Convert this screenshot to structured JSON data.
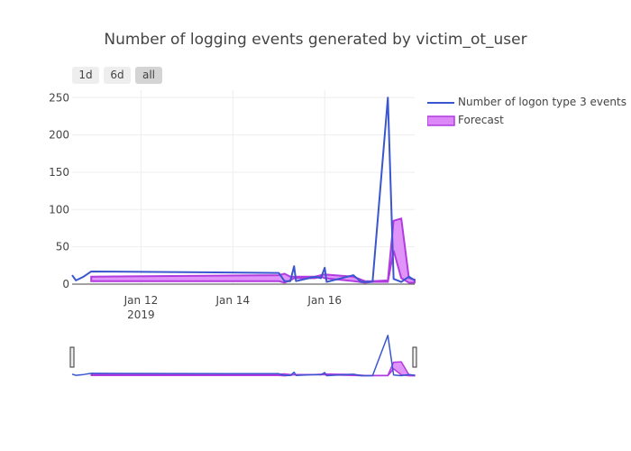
{
  "chart_data": {
    "type": "line",
    "title": "Number of logging events generated by victim_ot_user",
    "xlabel": "",
    "ylabel": "",
    "x_axis": {
      "type": "date",
      "ticks": [
        "Jan 12",
        "Jan 14",
        "Jan 16"
      ],
      "year_label": "2019",
      "range": [
        "2019-01-10 12:00",
        "2019-01-17 23:00"
      ]
    },
    "y_axis": {
      "ticks": [
        0,
        50,
        100,
        150,
        200,
        250
      ],
      "range": [
        0,
        260
      ]
    },
    "grid": true,
    "legend_position": "right",
    "series": [
      {
        "name": "Number of logon type 3 events",
        "type": "line",
        "color": "#3a56cf",
        "points": [
          [
            "2019-01-10 12:00",
            12
          ],
          [
            "2019-01-10 14:00",
            5
          ],
          [
            "2019-01-10 18:00",
            10
          ],
          [
            "2019-01-10 22:00",
            17
          ],
          [
            "2019-01-15 00:00",
            15
          ],
          [
            "2019-01-15 03:00",
            4
          ],
          [
            "2019-01-15 06:00",
            4
          ],
          [
            "2019-01-15 08:00",
            24
          ],
          [
            "2019-01-15 09:00",
            4
          ],
          [
            "2019-01-15 19:00",
            10
          ],
          [
            "2019-01-15 22:00",
            8
          ],
          [
            "2019-01-16 00:00",
            22
          ],
          [
            "2019-01-16 01:00",
            3
          ],
          [
            "2019-01-16 15:00",
            12
          ],
          [
            "2019-01-16 19:00",
            3
          ],
          [
            "2019-01-16 21:00",
            3
          ],
          [
            "2019-01-17 01:00",
            3
          ],
          [
            "2019-01-17 09:00",
            250
          ],
          [
            "2019-01-17 12:00",
            7
          ],
          [
            "2019-01-17 16:00",
            3
          ],
          [
            "2019-01-17 20:00",
            10
          ],
          [
            "2019-01-17 23:00",
            5
          ]
        ]
      },
      {
        "name": "Forecast",
        "type": "band",
        "color": "#b13ae0",
        "fill": "#dd88f8",
        "points": [
          [
            "2019-01-10 22:00",
            4,
            10
          ],
          [
            "2019-01-15 00:00",
            4,
            12
          ],
          [
            "2019-01-15 03:00",
            2,
            14
          ],
          [
            "2019-01-15 06:00",
            5,
            10
          ],
          [
            "2019-01-15 08:00",
            8,
            10
          ],
          [
            "2019-01-15 19:00",
            8,
            10
          ],
          [
            "2019-01-15 22:00",
            10,
            12
          ],
          [
            "2019-01-16 00:00",
            8,
            13
          ],
          [
            "2019-01-16 15:00",
            4,
            10
          ],
          [
            "2019-01-16 21:00",
            2,
            4
          ],
          [
            "2019-01-17 01:00",
            3,
            4
          ],
          [
            "2019-01-17 09:00",
            3,
            5
          ],
          [
            "2019-01-17 12:00",
            45,
            85
          ],
          [
            "2019-01-17 16:00",
            8,
            88
          ],
          [
            "2019-01-17 20:00",
            2,
            8
          ],
          [
            "2019-01-17 23:00",
            2,
            6
          ]
        ]
      }
    ]
  },
  "range_selector": {
    "buttons": [
      "1d",
      "6d",
      "all"
    ],
    "active": "all"
  }
}
